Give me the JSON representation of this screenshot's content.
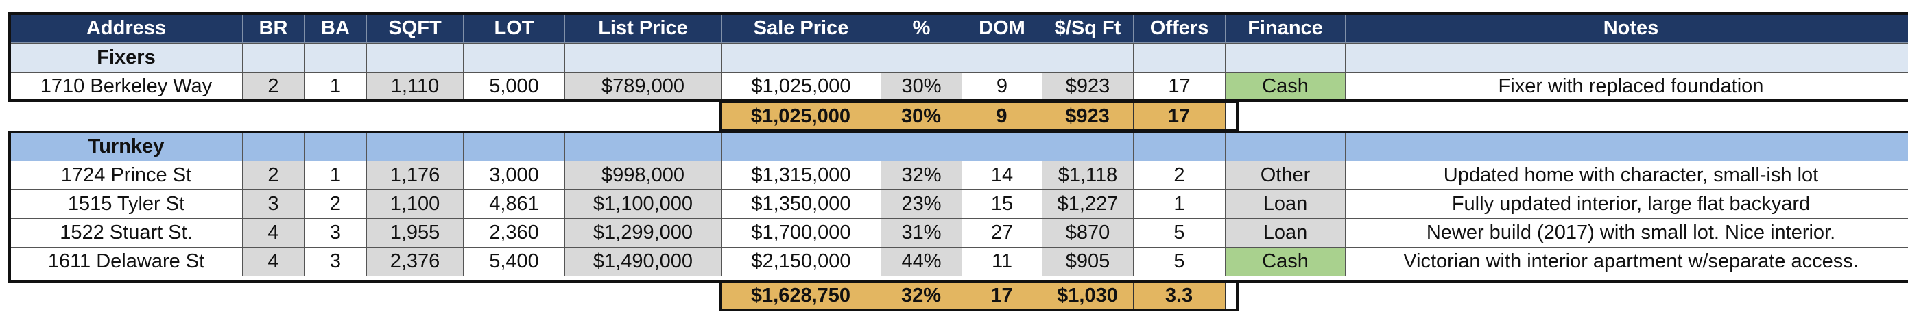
{
  "columns": [
    "Address",
    "BR",
    "BA",
    "SQFT",
    "LOT",
    "List Price",
    "Sale Price",
    "%",
    "DOM",
    "$/Sq Ft",
    "Offers",
    "Finance",
    "Notes"
  ],
  "fixers": {
    "label": "Fixers",
    "rows": [
      {
        "address": "1710 Berkeley Way",
        "br": "2",
        "ba": "1",
        "sqft": "1,110",
        "lot": "5,000",
        "list": "$789,000",
        "sale": "$1,025,000",
        "pct": "30%",
        "dom": "9",
        "ppsf": "$923",
        "offers": "17",
        "finance": "Cash",
        "notes": "Fixer with replaced foundation"
      }
    ],
    "totals": {
      "sale": "$1,025,000",
      "pct": "30%",
      "dom": "9",
      "ppsf": "$923",
      "offers": "17"
    }
  },
  "turnkey": {
    "label": "Turnkey",
    "rows": [
      {
        "address": "1724 Prince St",
        "br": "2",
        "ba": "1",
        "sqft": "1,176",
        "lot": "3,000",
        "list": "$998,000",
        "sale": "$1,315,000",
        "pct": "32%",
        "dom": "14",
        "ppsf": "$1,118",
        "offers": "2",
        "finance": "Other",
        "notes": "Updated home with character, small-ish lot"
      },
      {
        "address": "1515 Tyler St",
        "br": "3",
        "ba": "2",
        "sqft": "1,100",
        "lot": "4,861",
        "list": "$1,100,000",
        "sale": "$1,350,000",
        "pct": "23%",
        "dom": "15",
        "ppsf": "$1,227",
        "offers": "1",
        "finance": "Loan",
        "notes": "Fully updated interior, large flat backyard"
      },
      {
        "address": "1522 Stuart St.",
        "br": "4",
        "ba": "3",
        "sqft": "1,955",
        "lot": "2,360",
        "list": "$1,299,000",
        "sale": "$1,700,000",
        "pct": "31%",
        "dom": "27",
        "ppsf": "$870",
        "offers": "5",
        "finance": "Loan",
        "notes": "Newer build (2017) with small lot. Nice interior."
      },
      {
        "address": "1611 Delaware St",
        "br": "4",
        "ba": "3",
        "sqft": "2,376",
        "lot": "5,400",
        "list": "$1,490,000",
        "sale": "$2,150,000",
        "pct": "44%",
        "dom": "11",
        "ppsf": "$905",
        "offers": "5",
        "finance": "Cash",
        "notes": "Victorian with interior apartment w/separate access."
      }
    ],
    "totals": {
      "sale": "$1,628,750",
      "pct": "32%",
      "dom": "17",
      "ppsf": "$1,030",
      "offers": "3.3"
    }
  },
  "colors": {
    "header_bg": "#1f3864",
    "fixers_section_bg": "#dce6f2",
    "turnkey_section_bg": "#9dbde6",
    "cell_grey": "#d9d9d9",
    "cash_green": "#a9d18e",
    "total_gold": "#e3b661"
  }
}
